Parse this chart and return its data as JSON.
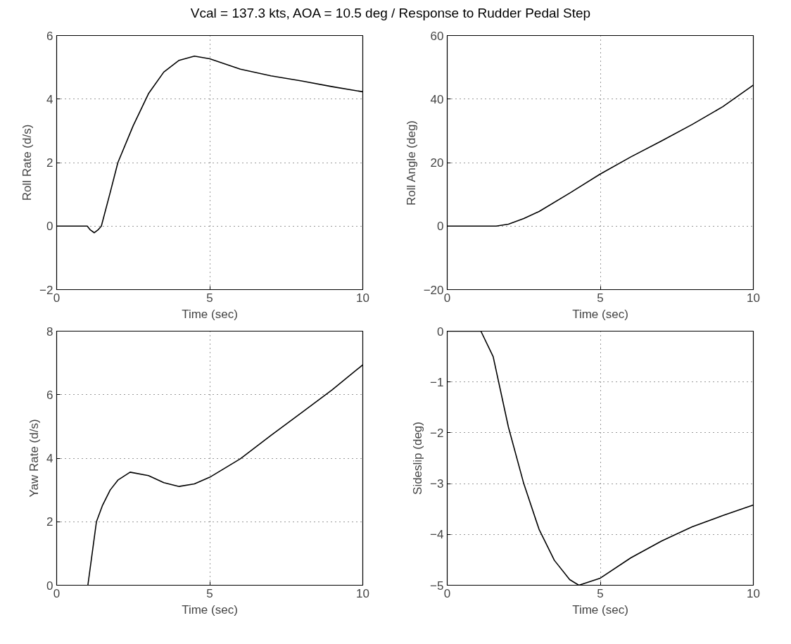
{
  "chart_data": [
    {
      "type": "line",
      "title": "Vcal = 137.3 kts, AOA = 10.5 deg / Response to Rudder Pedal Step",
      "xlabel": "Time (sec)",
      "ylabel": "Roll Rate (d/s)",
      "xlim": [
        0,
        10
      ],
      "ylim": [
        -2,
        6
      ],
      "xticks": [
        0,
        5,
        10
      ],
      "yticks": [
        -2,
        0,
        2,
        4,
        6
      ],
      "grid": true,
      "line_style": "solid",
      "series": [
        {
          "color": "#000000",
          "x": [
            0,
            1.0,
            1.1,
            1.23,
            1.35,
            1.46,
            1.75,
            2.0,
            2.5,
            3.0,
            3.5,
            4.0,
            4.5,
            5.0,
            6.0,
            7.0,
            8.0,
            9.0,
            10.0
          ],
          "values": [
            0,
            0,
            -0.12,
            -0.21,
            -0.12,
            0,
            1.06,
            2.0,
            3.16,
            4.17,
            4.85,
            5.22,
            5.35,
            5.27,
            4.94,
            4.73,
            4.57,
            4.39,
            4.23
          ]
        }
      ]
    },
    {
      "type": "line",
      "xlabel": "Time (sec)",
      "ylabel": "Roll Angle (deg)",
      "xlim": [
        0,
        10
      ],
      "ylim": [
        -20,
        60
      ],
      "xticks": [
        0,
        5,
        10
      ],
      "yticks": [
        -20,
        0,
        20,
        40,
        60
      ],
      "grid": true,
      "line_style": "solid",
      "series": [
        {
          "color": "#000000",
          "x": [
            0,
            1.6,
            2.0,
            2.5,
            3.0,
            4.0,
            5.0,
            6.0,
            7.0,
            8.0,
            9.0,
            10.0
          ],
          "values": [
            0,
            0,
            0.6,
            2.4,
            4.6,
            10.4,
            16.4,
            21.8,
            26.8,
            32.0,
            37.6,
            44.4
          ]
        }
      ]
    },
    {
      "type": "line",
      "xlabel": "Time (sec)",
      "ylabel": "Yaw Rate (d/s)",
      "xlim": [
        0,
        10
      ],
      "ylim": [
        0,
        8
      ],
      "xticks": [
        0,
        5,
        10
      ],
      "yticks": [
        0,
        2,
        4,
        6,
        8
      ],
      "grid": true,
      "line_style": "solid",
      "series": [
        {
          "color": "#000000",
          "x": [
            1.02,
            1.3,
            1.5,
            1.75,
            2.0,
            2.4,
            3.0,
            3.5,
            4.0,
            4.5,
            5.0,
            6.0,
            7.0,
            8.0,
            9.0,
            10.0
          ],
          "values": [
            0,
            2.0,
            2.52,
            3.0,
            3.31,
            3.56,
            3.45,
            3.23,
            3.11,
            3.19,
            3.4,
            3.98,
            4.72,
            5.43,
            6.15,
            6.94
          ]
        }
      ]
    },
    {
      "type": "line",
      "xlabel": "Time (sec)",
      "ylabel": "Sideslip (deg)",
      "xlim": [
        0,
        10
      ],
      "ylim": [
        -5,
        0
      ],
      "xticks": [
        0,
        5,
        10
      ],
      "yticks": [
        -5,
        -4,
        -3,
        -2,
        -1,
        0
      ],
      "grid": true,
      "line_style": "solid",
      "series": [
        {
          "color": "#000000",
          "x": [
            0,
            1.1,
            1.5,
            2.0,
            2.5,
            3.0,
            3.5,
            4.0,
            4.3,
            5.0,
            6.0,
            7.0,
            8.0,
            9.0,
            10.0
          ],
          "values": [
            0,
            0,
            -0.5,
            -1.89,
            -3.0,
            -3.9,
            -4.51,
            -4.89,
            -5.0,
            -4.86,
            -4.46,
            -4.13,
            -3.85,
            -3.63,
            -3.42
          ]
        }
      ]
    }
  ]
}
